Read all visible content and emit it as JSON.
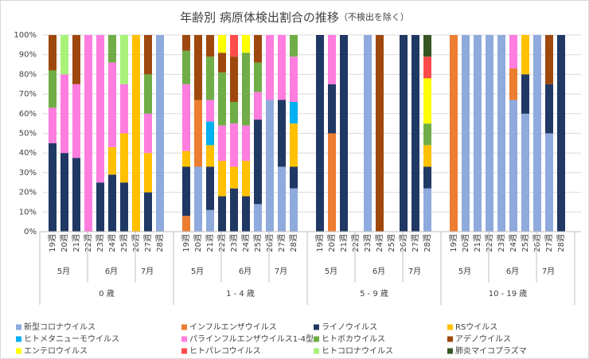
{
  "chart_data": {
    "type": "stacked_bar",
    "title": "年齢別 病原体検出割合の推移",
    "subtitle": "（不検出を除く）",
    "groups": [
      "0 歳",
      "1 - 4 歳",
      "5 - 9 歳",
      "10 - 19 歳"
    ],
    "months": [
      "5月",
      "6月",
      "7月"
    ],
    "categories": [
      "19週",
      "20週",
      "21週",
      "22週",
      "23週",
      "24週",
      "25週",
      "26週",
      "27週",
      "28週",
      "19週",
      "20週",
      "21週",
      "22週",
      "23週",
      "24週",
      "25週",
      "26週",
      "27週",
      "28週",
      "19週",
      "20週",
      "21週",
      "22週",
      "23週",
      "24週",
      "25週",
      "26週",
      "27週",
      "28週",
      "19週",
      "20週",
      "21週",
      "22週",
      "23週",
      "24週",
      "25週",
      "26週",
      "27週",
      "28週"
    ],
    "ylim": [
      0,
      100
    ],
    "yticks": [
      {
        "value": 0,
        "label": "0%"
      },
      {
        "value": 10,
        "label": "10%"
      },
      {
        "value": 20,
        "label": "20%"
      },
      {
        "value": 30,
        "label": "30%"
      },
      {
        "value": 40,
        "label": "40%"
      },
      {
        "value": 50,
        "label": "50%"
      },
      {
        "value": 60,
        "label": "60%"
      },
      {
        "value": 70,
        "label": "70%"
      },
      {
        "value": 80,
        "label": "80%"
      },
      {
        "value": 90,
        "label": "90%"
      },
      {
        "value": 100,
        "label": "100%"
      }
    ],
    "series": [
      {
        "name": "新型コロナウイルス",
        "color": "#8faadc",
        "values": [
          0,
          0,
          0,
          0,
          0,
          0,
          0,
          0,
          0,
          100,
          0,
          33,
          11,
          0,
          0,
          0,
          14,
          67,
          33,
          22,
          0,
          0,
          0,
          0,
          100,
          0,
          0,
          0,
          0,
          22,
          0,
          100,
          100,
          100,
          100,
          67,
          60,
          100,
          50,
          0
        ]
      },
      {
        "name": "インフルエンザウイルス",
        "color": "#ed7d31",
        "values": [
          0,
          0,
          0,
          0,
          0,
          0,
          0,
          0,
          0,
          0,
          8,
          34,
          0,
          0,
          0,
          0,
          0,
          0,
          0,
          0,
          0,
          50,
          0,
          0,
          0,
          0,
          0,
          0,
          0,
          0,
          100,
          0,
          0,
          0,
          0,
          16,
          0,
          0,
          0,
          0
        ]
      },
      {
        "name": "ライノウイルス",
        "color": "#203864",
        "values": [
          45,
          40,
          37.5,
          0,
          25,
          29,
          25,
          0,
          20,
          0,
          25,
          0,
          22,
          18,
          22,
          18,
          43,
          0,
          34,
          11,
          100,
          25,
          100,
          0,
          0,
          0,
          0,
          100,
          100,
          11,
          0,
          0,
          0,
          0,
          0,
          0,
          20,
          0,
          25,
          100
        ]
      },
      {
        "name": "RSウイルス",
        "color": "#ffc000",
        "values": [
          0,
          0,
          0,
          0,
          0,
          14,
          25,
          100,
          20,
          0,
          8,
          0,
          11,
          18,
          11,
          18,
          0,
          0,
          0,
          22,
          0,
          0,
          0,
          0,
          0,
          0,
          0,
          0,
          0,
          11,
          0,
          0,
          0,
          0,
          0,
          0,
          20,
          0,
          0,
          0
        ]
      },
      {
        "name": "ヒトメタニューモウイルス",
        "color": "#00b0f0",
        "values": [
          0,
          0,
          0,
          0,
          0,
          0,
          0,
          0,
          0,
          0,
          0,
          0,
          12,
          0,
          0,
          0,
          0,
          0,
          0,
          11,
          0,
          0,
          0,
          0,
          0,
          0,
          0,
          0,
          0,
          0,
          0,
          0,
          0,
          0,
          0,
          0,
          0,
          0,
          0,
          0
        ]
      },
      {
        "name": "パラインフルエンザウイルス1-4型",
        "color": "#ff7ddf",
        "values": [
          18,
          40,
          37.5,
          100,
          75,
          43,
          25,
          0,
          20,
          0,
          34,
          0,
          11,
          18,
          22,
          18,
          14,
          33,
          33,
          23,
          0,
          25,
          0,
          0,
          0,
          0,
          0,
          0,
          0,
          0,
          0,
          0,
          0,
          0,
          0,
          17,
          0,
          0,
          0,
          0
        ]
      },
      {
        "name": "ヒトボカウイルス",
        "color": "#70ad47",
        "values": [
          19,
          0,
          0,
          0,
          0,
          14,
          0,
          0,
          20,
          0,
          17,
          0,
          22,
          27,
          11,
          37,
          15,
          0,
          0,
          11,
          0,
          0,
          0,
          0,
          0,
          0,
          0,
          0,
          0,
          11,
          0,
          0,
          0,
          0,
          0,
          0,
          0,
          0,
          0,
          0
        ]
      },
      {
        "name": "アデノウイルス",
        "color": "#9e480e",
        "values": [
          18,
          0,
          25,
          0,
          0,
          0,
          0,
          0,
          20,
          0,
          8,
          33,
          11,
          10,
          23,
          0,
          14,
          0,
          0,
          0,
          0,
          0,
          0,
          0,
          0,
          100,
          0,
          0,
          0,
          0,
          0,
          0,
          0,
          0,
          0,
          0,
          0,
          0,
          25,
          0
        ]
      },
      {
        "name": "エンテロウイルス",
        "color": "#ffff00",
        "values": [
          0,
          0,
          0,
          0,
          0,
          0,
          0,
          0,
          0,
          0,
          0,
          0,
          0,
          9,
          0,
          9,
          0,
          0,
          0,
          0,
          0,
          0,
          0,
          0,
          0,
          0,
          0,
          0,
          0,
          23,
          0,
          0,
          0,
          0,
          0,
          0,
          0,
          0,
          0,
          0
        ]
      },
      {
        "name": "ヒトパレコウイルス",
        "color": "#ff4b4b",
        "values": [
          0,
          0,
          0,
          0,
          0,
          0,
          0,
          0,
          0,
          0,
          0,
          0,
          0,
          0,
          11,
          0,
          0,
          0,
          0,
          0,
          0,
          0,
          0,
          0,
          0,
          0,
          0,
          0,
          0,
          11,
          0,
          0,
          0,
          0,
          0,
          0,
          0,
          0,
          0,
          0
        ]
      },
      {
        "name": "ヒトコロナウイルス",
        "color": "#a9f27a",
        "values": [
          0,
          20,
          0,
          0,
          0,
          0,
          25,
          0,
          0,
          0,
          0,
          0,
          0,
          0,
          0,
          0,
          0,
          0,
          0,
          0,
          0,
          0,
          0,
          0,
          0,
          0,
          0,
          0,
          0,
          0,
          0,
          0,
          0,
          0,
          0,
          0,
          0,
          0,
          0,
          0
        ]
      },
      {
        "name": "肺炎マイコプラズマ",
        "color": "#375623",
        "values": [
          0,
          0,
          0,
          0,
          0,
          0,
          0,
          0,
          0,
          0,
          0,
          0,
          0,
          0,
          0,
          0,
          0,
          0,
          0,
          0,
          0,
          0,
          0,
          0,
          0,
          0,
          0,
          0,
          0,
          11,
          0,
          0,
          0,
          0,
          0,
          0,
          0,
          0,
          0,
          0
        ]
      }
    ]
  }
}
